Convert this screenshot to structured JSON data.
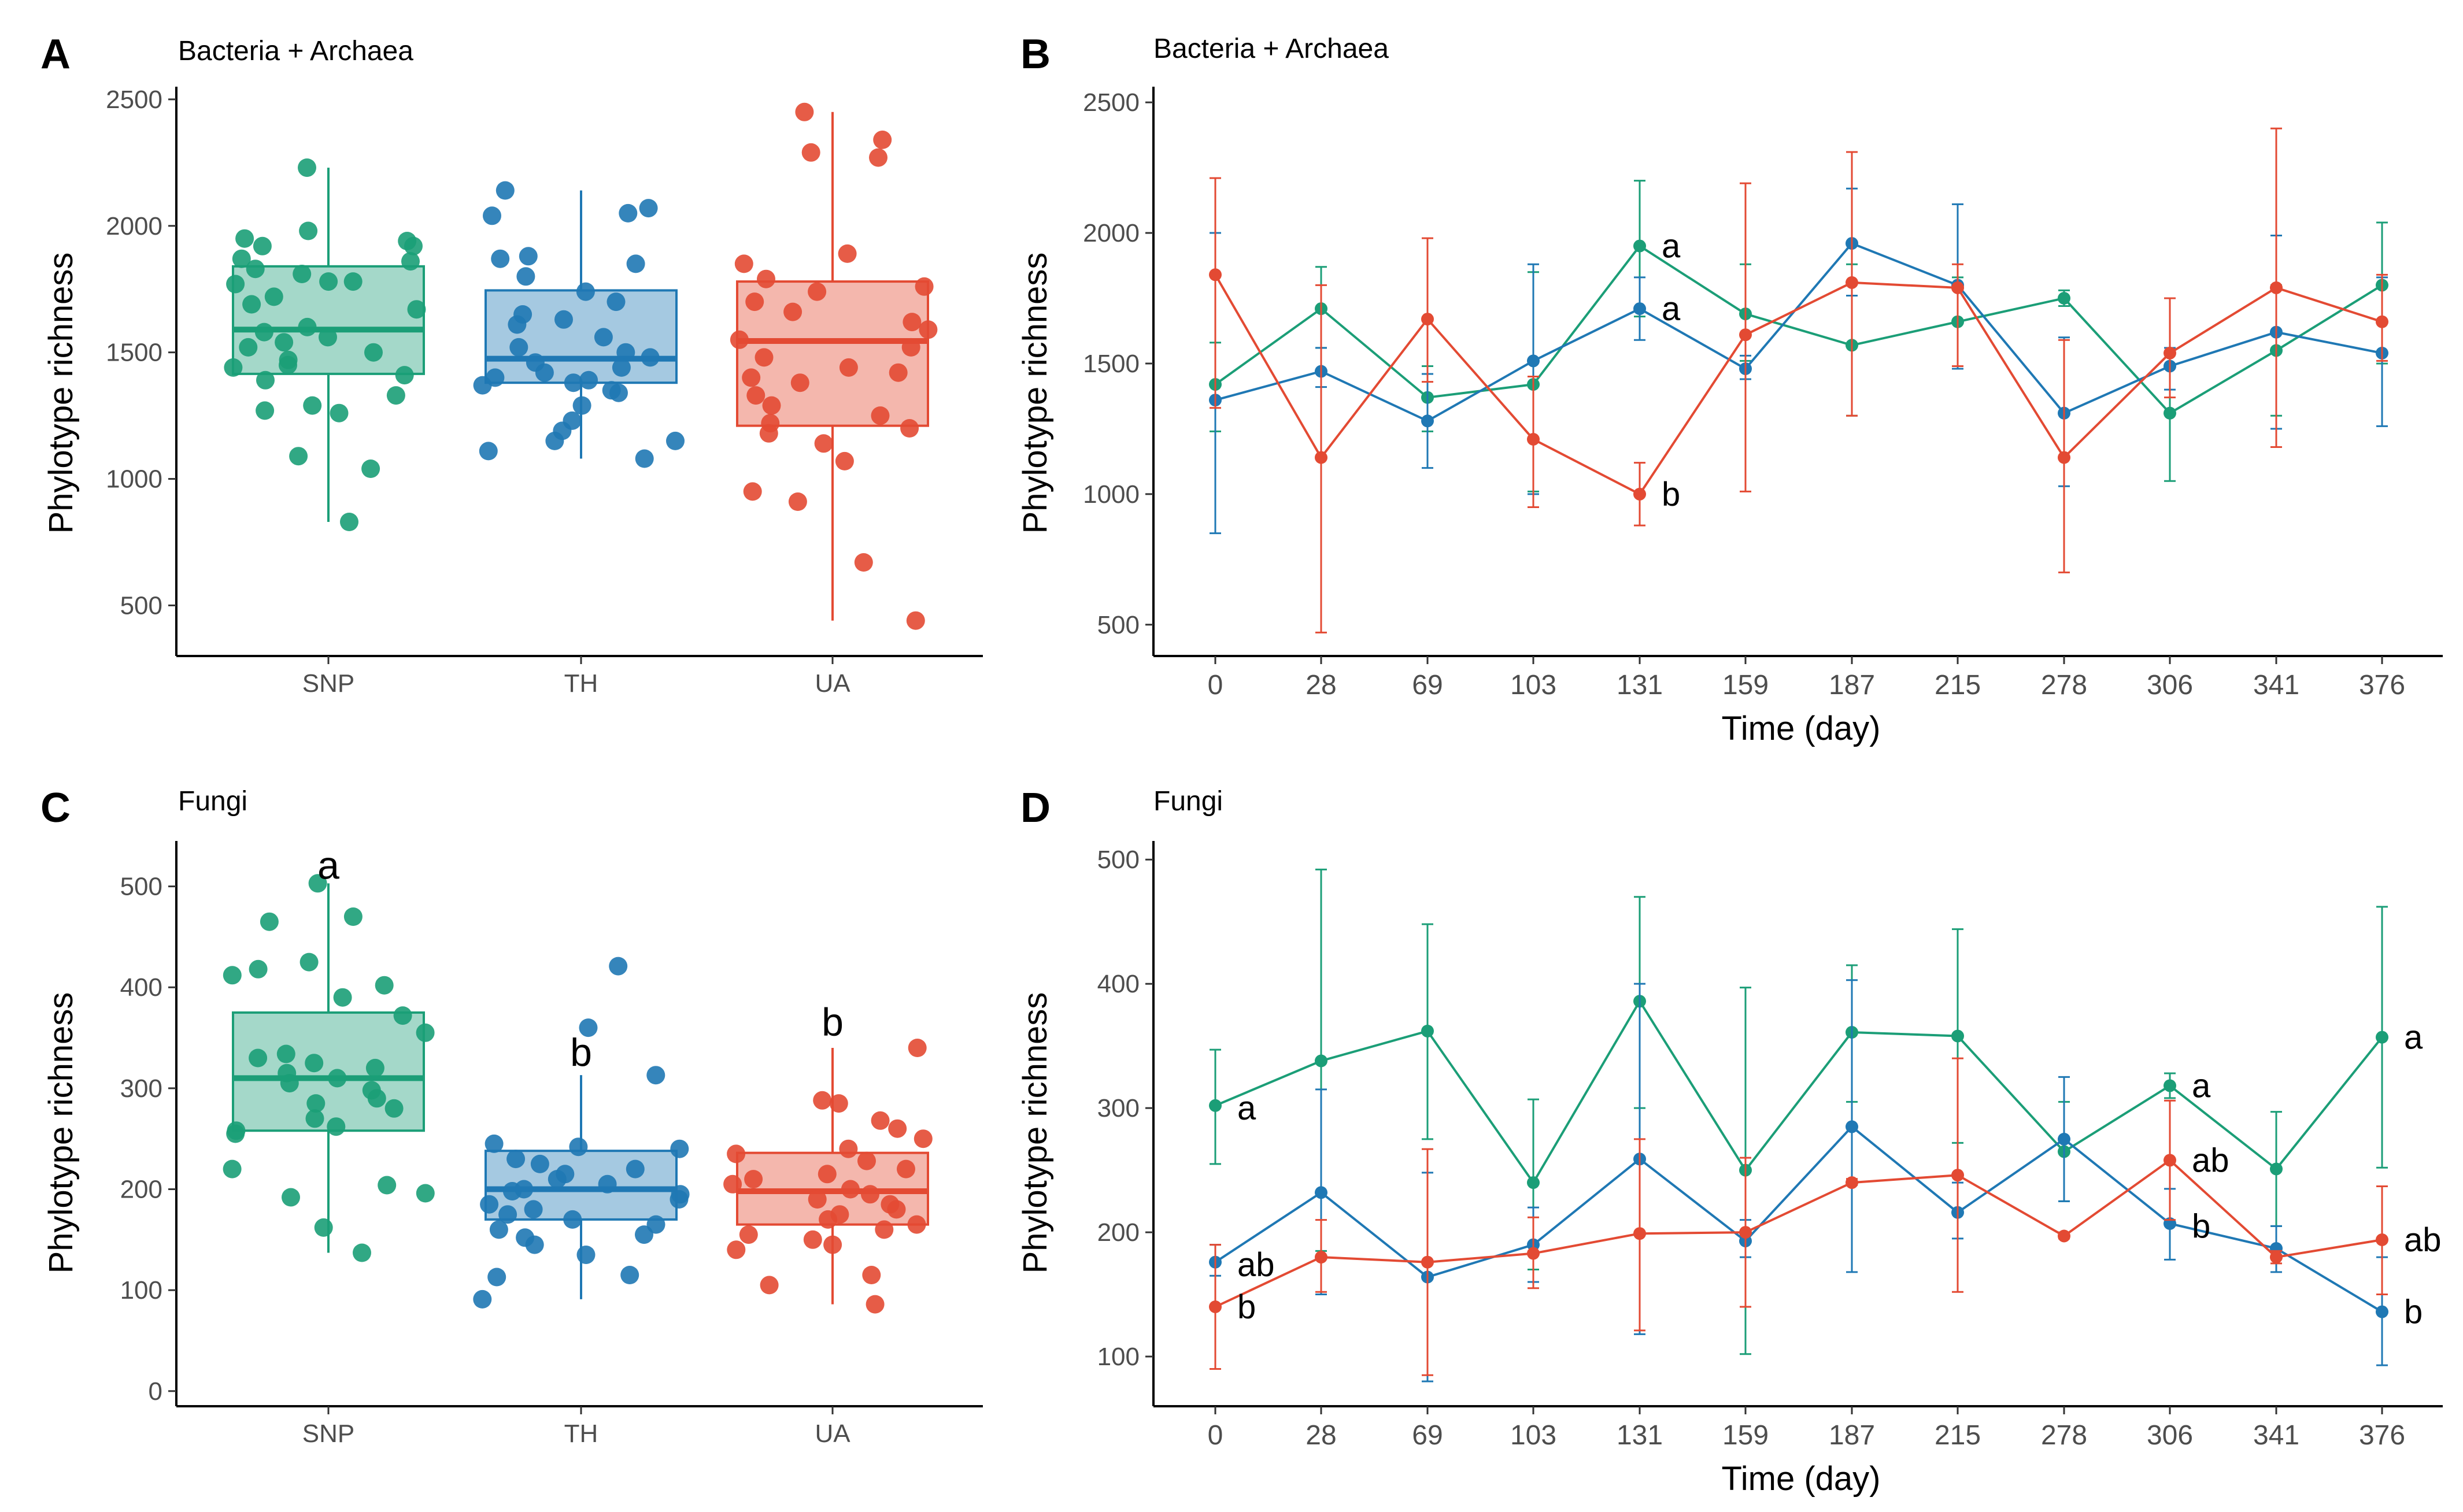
{
  "colors": {
    "SNP": "#1b9e77",
    "TH": "#1f78b4",
    "UA": "#e34a33"
  },
  "chart_data": [
    {
      "panel": "A",
      "type": "box",
      "subtitle": "Bacteria + Archaea",
      "ylabel": "Phylotype richness",
      "xlabel": "",
      "ylim": [
        300,
        2550
      ],
      "yticks": [
        500,
        1000,
        1500,
        2000,
        2500
      ],
      "categories": [
        "SNP",
        "TH",
        "UA"
      ],
      "boxes": [
        {
          "name": "SNP",
          "q1": 1415,
          "median": 1590,
          "q3": 1840,
          "min": 830,
          "max": 2230
        },
        {
          "name": "TH",
          "q1": 1380,
          "median": 1475,
          "q3": 1745,
          "min": 1080,
          "max": 2140
        },
        {
          "name": "UA",
          "q1": 1210,
          "median": 1545,
          "q3": 1780,
          "min": 440,
          "max": 2450
        }
      ],
      "points": [
        [
          1940,
          1920,
          1870,
          2230,
          1860,
          1830,
          1810,
          1780,
          1780,
          1720,
          1690,
          1670,
          1600,
          1580,
          1560,
          1540,
          1520,
          1500,
          1470,
          1450,
          1440,
          1410,
          1390,
          1330,
          1290,
          1270,
          1260,
          1090,
          1040,
          830,
          1950,
          1920,
          1980,
          1770
        ],
        [
          2140,
          2070,
          2050,
          2040,
          1880,
          1870,
          1850,
          1800,
          1740,
          1700,
          1650,
          1630,
          1610,
          1560,
          1520,
          1500,
          1480,
          1460,
          1440,
          1420,
          1400,
          1390,
          1380,
          1370,
          1350,
          1340,
          1290,
          1230,
          1190,
          1150,
          1150,
          1110,
          1080
        ],
        [
          2450,
          2340,
          2290,
          2270,
          1890,
          1850,
          1790,
          1760,
          1740,
          1700,
          1660,
          1620,
          1590,
          1550,
          1520,
          1480,
          1440,
          1420,
          1400,
          1380,
          1330,
          1290,
          1250,
          1220,
          1200,
          1180,
          1140,
          1070,
          950,
          910,
          670,
          440
        ]
      ],
      "annotations": []
    },
    {
      "panel": "B",
      "type": "line",
      "subtitle": "Bacteria + Archaea",
      "ylabel": "Phylotype richness",
      "xlabel": "Time (day)",
      "ylim": [
        380,
        2560
      ],
      "yticks": [
        500,
        1000,
        1500,
        2000,
        2500
      ],
      "x": [
        "0",
        "28",
        "69",
        "103",
        "131",
        "159",
        "187",
        "215",
        "278",
        "306",
        "341",
        "376"
      ],
      "series": [
        {
          "name": "SNP",
          "values": [
            1420,
            1710,
            1370,
            1420,
            1950,
            1690,
            1570,
            1660,
            1750,
            1310,
            1550,
            1800
          ],
          "lower": [
            1240,
            1560,
            1240,
            1010,
            1680,
            1510,
            1300,
            1490,
            1720,
            1050,
            1300,
            1500
          ],
          "upper": [
            1580,
            1870,
            1490,
            1850,
            2200,
            1880,
            1880,
            1830,
            1780,
            1540,
            1800,
            2040
          ]
        },
        {
          "name": "TH",
          "values": [
            1360,
            1470,
            1280,
            1510,
            1710,
            1480,
            1960,
            1800,
            1310,
            1490,
            1620,
            1540
          ],
          "lower": [
            850,
            1410,
            1100,
            1000,
            1590,
            1440,
            1760,
            1480,
            1030,
            1400,
            1250,
            1260
          ],
          "upper": [
            2000,
            1560,
            1460,
            1880,
            1830,
            1530,
            2170,
            2110,
            1600,
            1560,
            1990,
            1830
          ]
        },
        {
          "name": "UA",
          "values": [
            1840,
            1140,
            1670,
            1210,
            1000,
            1610,
            1810,
            1790,
            1140,
            1540,
            1790,
            1660
          ],
          "lower": [
            1330,
            470,
            1430,
            950,
            880,
            1010,
            1300,
            1490,
            700,
            1370,
            1180,
            1510
          ],
          "upper": [
            2210,
            1800,
            1980,
            1450,
            1120,
            2190,
            2310,
            1880,
            1590,
            1750,
            2400,
            1840
          ]
        }
      ],
      "annotations": [
        {
          "text": "a",
          "x": "131",
          "y": 1950
        },
        {
          "text": "a",
          "x": "131",
          "y": 1710
        },
        {
          "text": "b",
          "x": "131",
          "y": 1000
        }
      ]
    },
    {
      "panel": "C",
      "type": "box",
      "subtitle": "Fungi",
      "ylabel": "Phylotype richness",
      "xlabel": "",
      "ylim": [
        -15,
        545
      ],
      "yticks": [
        0,
        100,
        200,
        300,
        400,
        500
      ],
      "categories": [
        "SNP",
        "TH",
        "UA"
      ],
      "boxes": [
        {
          "name": "SNP",
          "q1": 258,
          "median": 310,
          "q3": 375,
          "min": 137,
          "max": 503
        },
        {
          "name": "TH",
          "q1": 170,
          "median": 200,
          "q3": 238,
          "min": 91,
          "max": 313
        },
        {
          "name": "UA",
          "q1": 165,
          "median": 198,
          "q3": 236,
          "min": 86,
          "max": 340
        }
      ],
      "points": [
        [
          503,
          470,
          465,
          425,
          418,
          412,
          402,
          390,
          372,
          355,
          334,
          330,
          325,
          320,
          315,
          310,
          305,
          298,
          290,
          285,
          280,
          270,
          262,
          258,
          255,
          220,
          204,
          196,
          192,
          162,
          137
        ],
        [
          421,
          360,
          313,
          245,
          242,
          240,
          230,
          225,
          220,
          215,
          210,
          205,
          200,
          198,
          195,
          190,
          185,
          180,
          175,
          170,
          165,
          160,
          155,
          152,
          145,
          135,
          115,
          113,
          91
        ],
        [
          340,
          288,
          285,
          268,
          260,
          250,
          240,
          235,
          228,
          220,
          215,
          210,
          205,
          200,
          195,
          190,
          185,
          180,
          175,
          170,
          165,
          160,
          155,
          150,
          145,
          140,
          115,
          105,
          86
        ]
      ],
      "annotations": [
        {
          "text": "a",
          "category": "SNP",
          "y": 520
        },
        {
          "text": "b",
          "category": "TH",
          "y": 335
        },
        {
          "text": "b",
          "category": "UA",
          "y": 365
        }
      ]
    },
    {
      "panel": "D",
      "type": "line",
      "subtitle": "Fungi",
      "ylabel": "Phylotype richness",
      "xlabel": "Time (day)",
      "ylim": [
        60,
        515
      ],
      "yticks": [
        100,
        200,
        300,
        400,
        500
      ],
      "x": [
        "0",
        "28",
        "69",
        "103",
        "131",
        "159",
        "187",
        "215",
        "278",
        "306",
        "341",
        "376"
      ],
      "series": [
        {
          "name": "SNP",
          "values": [
            302,
            338,
            362,
            240,
            386,
            250,
            361,
            358,
            265,
            318,
            251,
            357
          ],
          "lower": [
            255,
            185,
            275,
            170,
            300,
            102,
            305,
            272,
            225,
            308,
            205,
            252
          ],
          "upper": [
            347,
            492,
            448,
            307,
            470,
            397,
            415,
            444,
            305,
            328,
            297,
            462
          ]
        },
        {
          "name": "TH",
          "values": [
            176,
            232,
            164,
            190,
            259,
            193,
            285,
            216,
            275,
            207,
            187,
            136
          ],
          "lower": [
            165,
            150,
            80,
            160,
            118,
            180,
            168,
            195,
            225,
            178,
            168,
            93
          ],
          "upper": [
            190,
            315,
            248,
            220,
            400,
            210,
            403,
            240,
            325,
            235,
            205,
            180
          ]
        },
        {
          "name": "UA",
          "values": [
            140,
            180,
            176,
            183,
            199,
            200,
            240,
            246,
            197,
            258,
            180,
            194
          ],
          "lower": [
            90,
            152,
            85,
            155,
            121,
            140,
            238,
            152,
            195,
            210,
            175,
            150
          ],
          "upper": [
            190,
            210,
            267,
            212,
            275,
            260,
            243,
            340,
            200,
            306,
            185,
            237
          ]
        }
      ],
      "annotations": [
        {
          "text": "a",
          "x": "0",
          "y": 300
        },
        {
          "text": "ab",
          "x": "0",
          "y": 174
        },
        {
          "text": "b",
          "x": "0",
          "y": 140
        },
        {
          "text": "a",
          "x": "306",
          "y": 318
        },
        {
          "text": "ab",
          "x": "306",
          "y": 258
        },
        {
          "text": "b",
          "x": "306",
          "y": 205
        },
        {
          "text": "a",
          "x": "376",
          "y": 357
        },
        {
          "text": "ab",
          "x": "376",
          "y": 194
        },
        {
          "text": "b",
          "x": "376",
          "y": 136
        }
      ]
    }
  ]
}
